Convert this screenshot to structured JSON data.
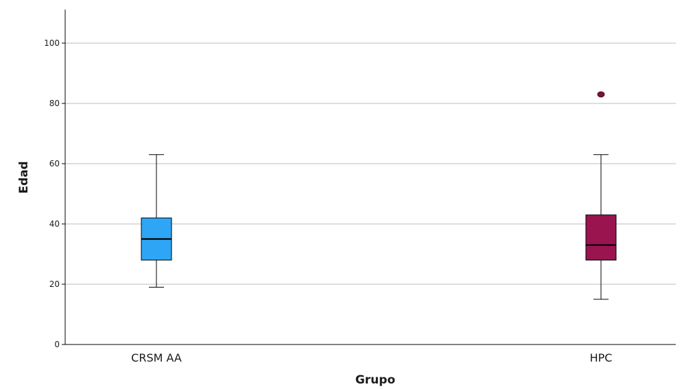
{
  "chart_data": {
    "type": "boxplot",
    "title": "",
    "xlabel": "Grupo",
    "ylabel": "Edad",
    "ylim": [
      0,
      110
    ],
    "yticks": [
      0,
      20,
      40,
      60,
      80,
      100
    ],
    "grid": true,
    "categories": [
      "CRSM AA",
      "HPC"
    ],
    "boxes": [
      {
        "category": "CRSM AA",
        "whisker_low": 19,
        "q1": 28,
        "median": 35,
        "q3": 42,
        "whisker_high": 63,
        "outliers": [],
        "color": "#2ea6f5"
      },
      {
        "category": "HPC",
        "whisker_low": 15,
        "q1": 28,
        "median": 33,
        "q3": 43,
        "whisker_high": 63,
        "outliers": [
          83
        ],
        "color": "#9a1450"
      }
    ],
    "outlier_color": "#7a1238"
  }
}
